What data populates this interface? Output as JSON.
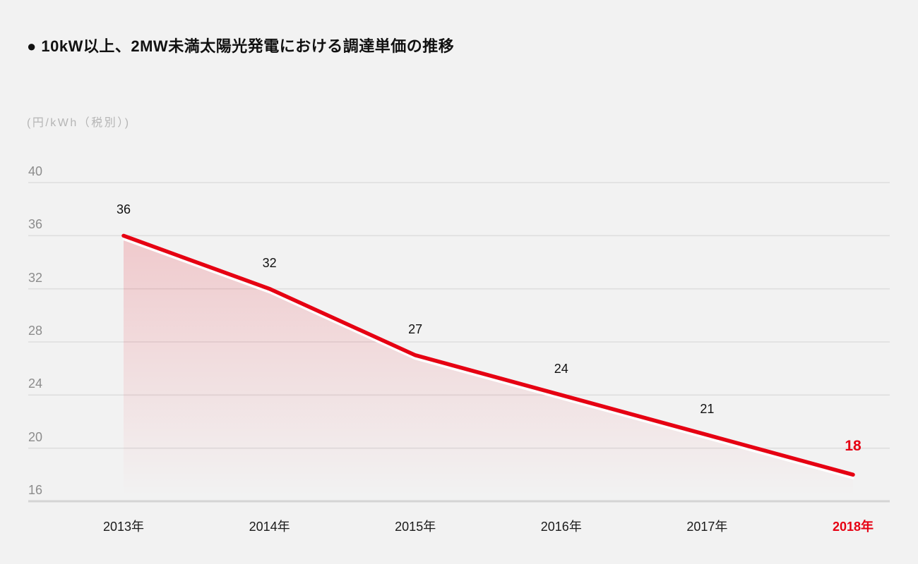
{
  "title": "● 10kW以上、2MW未満太陽光発電における調達単価の推移",
  "unit_label": "(円/kWh（税別）)",
  "colors": {
    "background": "#f2f2f2",
    "line_red": "#e60012",
    "grid": "#dedede",
    "axis_base": "#d4d4d4",
    "area_fill_top": "rgba(230,0,18,0.17)",
    "area_fill_bottom": "rgba(230,0,18,0)",
    "area_top_stroke": "#ffffff",
    "tick_text": "#8c8c8c",
    "unit_text": "#b5b5b5",
    "label_text": "#111111"
  },
  "chart_data": {
    "type": "area",
    "title": "10kW以上、2MW未満太陽光発電における調達単価の推移",
    "ylabel": "円/kWh（税別）",
    "categories": [
      "2013年",
      "2014年",
      "2015年",
      "2016年",
      "2017年",
      "2018年"
    ],
    "values": [
      36,
      32,
      27,
      24,
      21,
      18
    ],
    "data_labels": [
      "36",
      "32",
      "27",
      "24",
      "21",
      "18"
    ],
    "highlight_category": "2018年",
    "highlight_value": 18,
    "yticks": [
      40,
      36,
      32,
      28,
      24,
      20,
      16
    ],
    "ylim": [
      16,
      42
    ],
    "grid": true,
    "legend": false
  }
}
